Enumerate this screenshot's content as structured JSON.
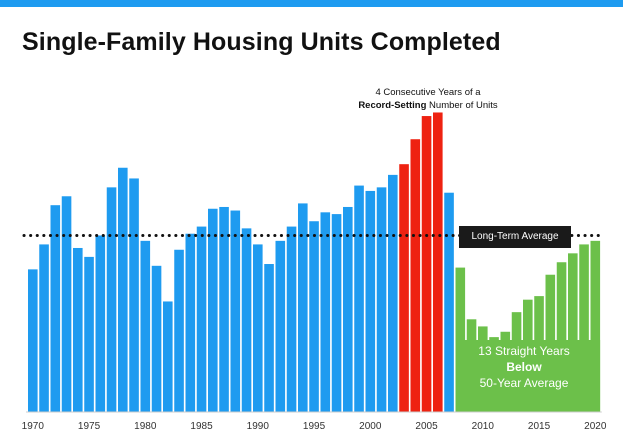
{
  "chart_data": {
    "type": "bar",
    "title": "Single-Family Housing Units Completed",
    "xlabel": "",
    "ylabel": "",
    "x_ticks": [
      "1970",
      "1975",
      "1980",
      "1985",
      "1990",
      "1995",
      "2000",
      "2005",
      "2010",
      "2015",
      "2020"
    ],
    "years": [
      1970,
      1971,
      1972,
      1973,
      1974,
      1975,
      1976,
      1977,
      1978,
      1979,
      1980,
      1981,
      1982,
      1983,
      1984,
      1985,
      1986,
      1987,
      1988,
      1989,
      1990,
      1991,
      1992,
      1993,
      1994,
      1995,
      1996,
      1997,
      1998,
      1999,
      2000,
      2001,
      2002,
      2003,
      2004,
      2005,
      2006,
      2007,
      2008,
      2009,
      2010,
      2011,
      2012,
      2013,
      2014,
      2015,
      2016,
      2017,
      2018,
      2019,
      2020
    ],
    "values": [
      0.8,
      0.94,
      1.16,
      1.21,
      0.92,
      0.87,
      0.99,
      1.26,
      1.37,
      1.31,
      0.96,
      0.82,
      0.62,
      0.91,
      1.0,
      1.04,
      1.14,
      1.15,
      1.13,
      1.03,
      0.94,
      0.83,
      0.96,
      1.04,
      1.17,
      1.07,
      1.12,
      1.11,
      1.15,
      1.27,
      1.24,
      1.26,
      1.33,
      1.39,
      1.53,
      1.66,
      1.68,
      1.23,
      0.81,
      0.52,
      0.48,
      0.42,
      0.45,
      0.56,
      0.63,
      0.65,
      0.77,
      0.84,
      0.89,
      0.94,
      0.96
    ],
    "colors": {
      "normal": "#1e9bf0",
      "record": "#ee2211",
      "below": "#6cc04a"
    },
    "categories_by_group": {
      "record": [
        2003,
        2004,
        2005,
        2006
      ],
      "below": [
        2008,
        2009,
        2010,
        2011,
        2012,
        2013,
        2014,
        2015,
        2016,
        2017,
        2018,
        2019,
        2020
      ]
    },
    "long_term_average": 0.99,
    "ylim": [
      0,
      1.75
    ]
  },
  "annotations": {
    "top_line1": "4 Consecutive Years of a",
    "top_bold": "Record-Setting",
    "top_rest": " Number of Units",
    "average_label": "Long-Term Average",
    "below_line1": "13 Straight Years",
    "below_line2": "Below",
    "below_line3": "50-Year Average"
  }
}
